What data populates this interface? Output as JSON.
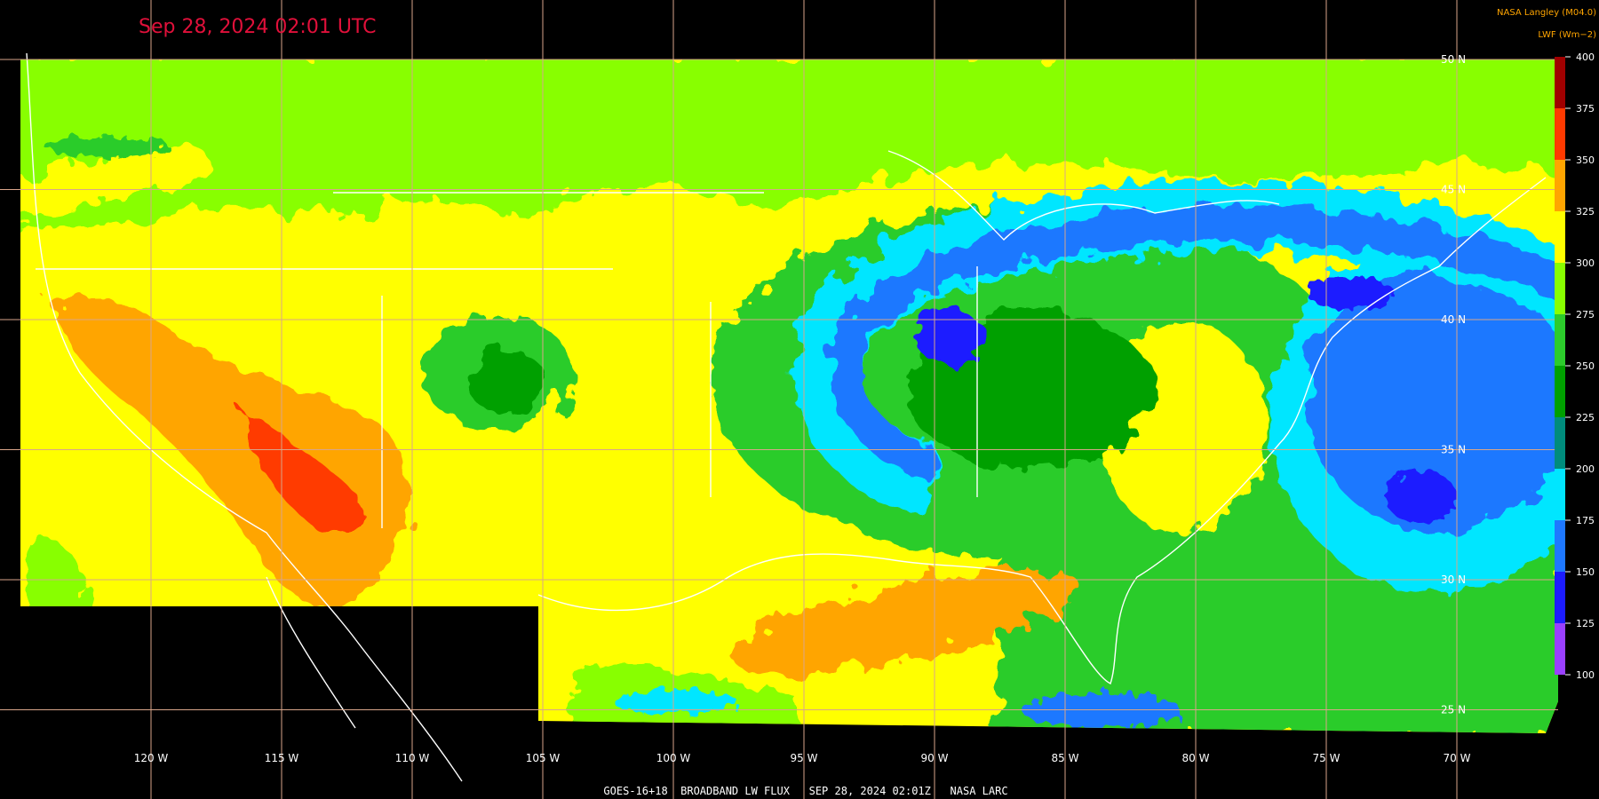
{
  "title": "Sep 28, 2024 02:01 UTC",
  "credit": "NASA Langley (M04.0)",
  "unit": "LWF (Wm−2)",
  "colorbar": {
    "ticks": [
      100,
      125,
      150,
      175,
      200,
      225,
      250,
      275,
      300,
      325,
      350,
      375,
      400
    ],
    "colors": [
      "#9a40ff",
      "#1c1cff",
      "#1e78ff",
      "#00e6ff",
      "#008c7c",
      "#00a000",
      "#2ccc2c",
      "#88ff00",
      "#ffff00",
      "#ffa500",
      "#ff3a00",
      "#a00000"
    ]
  },
  "longitudes": [
    "120 W",
    "115 W",
    "110 W",
    "105 W",
    "100 W",
    "95 W",
    "90 W",
    "85 W",
    "80 W",
    "75 W",
    "70 W"
  ],
  "latitudes": [
    "50 N",
    "45 N",
    "40 N",
    "35 N",
    "30 N",
    "25 N"
  ],
  "footer": "GOES-16+18  BROADBAND LW FLUX   SEP 28, 2024 02:01Z   NASA LARC"
}
